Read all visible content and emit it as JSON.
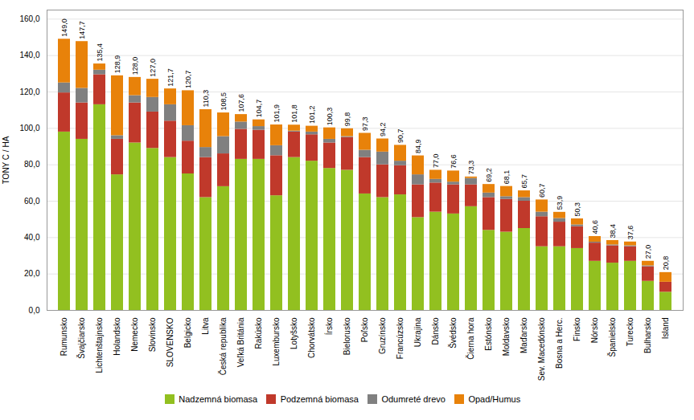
{
  "chart_data": {
    "type": "bar",
    "stacked": true,
    "categories": [
      "Rumunsko",
      "Švajčiarsko",
      "Lichtenštajnsko",
      "Holandsko",
      "Nemecko",
      "Slovinsko",
      "SLOVENSKO",
      "Belgicko",
      "Litva",
      "Česká republika",
      "Veľká Británia",
      "Rakúsko",
      "Luxembursko",
      "Lotyšsko",
      "Chorvátsko",
      "Írsko",
      "Bielorusko",
      "Poľsko",
      "Gruzínsko",
      "Francúzsko",
      "Ukrajina",
      "Dánsko",
      "Švédsko",
      "Čierna hora",
      "Estónsko",
      "Moldavsko",
      "Maďarsko",
      "Sev. Macedónsko",
      "Bosna a Herc.",
      "Finsko",
      "Nórsko",
      "Španielsko",
      "Turecko",
      "Bulharsko",
      "Island"
    ],
    "series": [
      {
        "name": "Nadzemná biomasa",
        "color": "#92C020",
        "values": [
          98.0,
          94.0,
          113.0,
          74.5,
          92.0,
          89.0,
          84.0,
          75.0,
          62.0,
          68.0,
          83.0,
          83.0,
          63.0,
          84.0,
          82.0,
          78.0,
          77.0,
          64.0,
          62.0,
          63.5,
          51.0,
          54.0,
          53.0,
          57.0,
          44.0,
          43.0,
          45.0,
          35.0,
          35.0,
          34.0,
          27.0,
          26.0,
          27.0,
          16.0,
          10.0
        ]
      },
      {
        "name": "Podzemná biomasa",
        "color": "#C0392B",
        "values": [
          21.5,
          20.0,
          16.5,
          19.5,
          22.0,
          20.0,
          20.0,
          18.0,
          22.0,
          18.0,
          16.5,
          16.0,
          22.0,
          14.0,
          14.5,
          14.0,
          18.0,
          20.0,
          18.0,
          16.0,
          18.0,
          16.0,
          16.0,
          12.0,
          18.0,
          18.0,
          15.0,
          16.5,
          13.5,
          12.0,
          10.0,
          9.5,
          8.0,
          8.0,
          5.5
        ]
      },
      {
        "name": "Odumreté drevo",
        "color": "#808080",
        "values": [
          5.5,
          8.0,
          2.5,
          2.0,
          4.0,
          8.0,
          9.0,
          8.5,
          5.5,
          9.5,
          4.0,
          2.0,
          5.5,
          0.5,
          1.5,
          2.0,
          0.5,
          4.0,
          7.0,
          2.5,
          5.5,
          2.0,
          1.5,
          3.5,
          2.5,
          1.5,
          2.0,
          2.5,
          2.0,
          1.0,
          0.5,
          0.5,
          0.5,
          0.5,
          0.0
        ]
      },
      {
        "name": "Opad/Humus",
        "color": "#E8820A",
        "values": [
          24.0,
          25.7,
          3.4,
          32.9,
          10.0,
          10.0,
          8.7,
          19.2,
          20.8,
          13.0,
          4.1,
          3.7,
          11.4,
          3.3,
          3.2,
          6.3,
          4.3,
          9.3,
          7.2,
          8.7,
          10.4,
          5.0,
          6.1,
          0.8,
          4.7,
          5.6,
          3.7,
          6.7,
          3.4,
          3.3,
          3.1,
          2.4,
          2.1,
          2.5,
          5.3
        ]
      }
    ],
    "totals": [
      149.0,
      147.7,
      135.4,
      128.9,
      128.0,
      127.0,
      121.7,
      120.7,
      110.3,
      108.5,
      107.6,
      104.7,
      101.9,
      101.8,
      101.2,
      100.3,
      99.8,
      97.3,
      94.2,
      90.7,
      84.9,
      77.0,
      76.6,
      73.3,
      69.2,
      68.1,
      65.7,
      60.7,
      53.9,
      50.3,
      40.6,
      38.4,
      37.6,
      27.0,
      20.8
    ],
    "total_labels": [
      "149,0",
      "147,7",
      "135,4",
      "128,9",
      "128,0",
      "127,0",
      "121,7",
      "120,7",
      "110,3",
      "108,5",
      "107,6",
      "104,7",
      "101,9",
      "101,8",
      "101,2",
      "100,3",
      "99,8",
      "97,3",
      "94,2",
      "90,7",
      "84,9",
      "77,0",
      "76,6",
      "73,3",
      "69,2",
      "68,1",
      "65,7",
      "60,7",
      "53,9",
      "50,3",
      "40,6",
      "38,4",
      "37,6",
      "27,0",
      "20,8"
    ],
    "ylabel": "TONY C / HA",
    "ylim": [
      0,
      165
    ],
    "yticks": [
      {
        "value": 0,
        "label": "0,0"
      },
      {
        "value": 20,
        "label": "20,0"
      },
      {
        "value": 40,
        "label": "40,0"
      },
      {
        "value": 60,
        "label": "60,0"
      },
      {
        "value": 80,
        "label": "80,0"
      },
      {
        "value": 100,
        "label": "100,0"
      },
      {
        "value": 120,
        "label": "120,0"
      },
      {
        "value": 140,
        "label": "140,0"
      },
      {
        "value": 160,
        "label": "160,0"
      }
    ],
    "grid": true,
    "legend": "bottom"
  }
}
